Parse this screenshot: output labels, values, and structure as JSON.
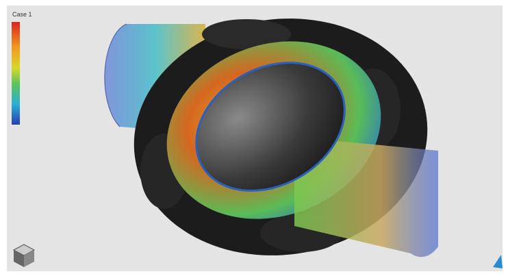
{
  "header": {
    "title": "Case 1"
  }
}
